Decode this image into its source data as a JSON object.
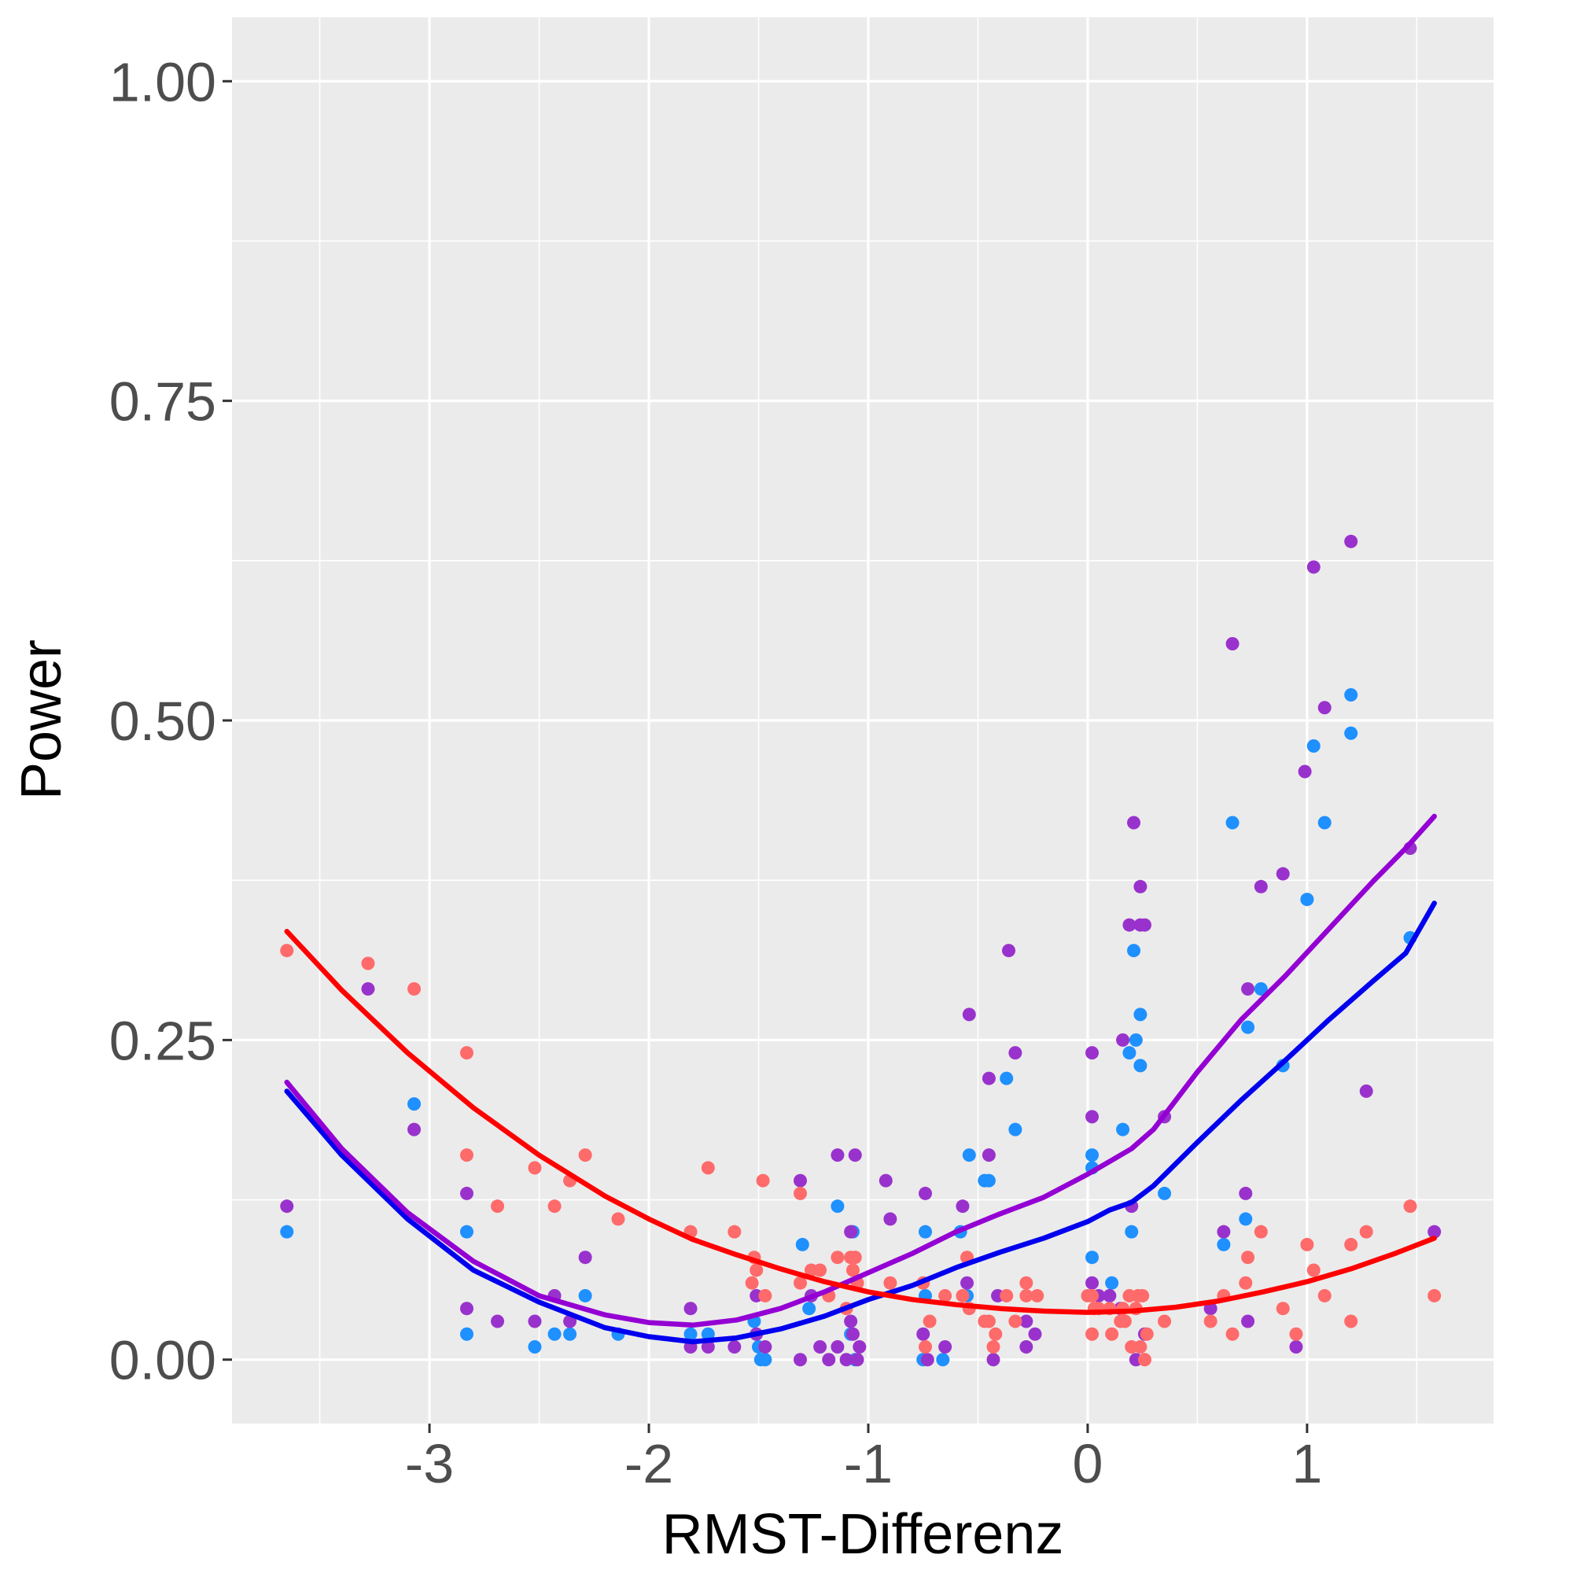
{
  "chart_data": {
    "type": "scatter",
    "xlabel": "RMST-Differenz",
    "ylabel": "Power",
    "xlim": [
      -3.9,
      1.85
    ],
    "ylim": [
      -0.05,
      1.05
    ],
    "x_ticks": [
      -3,
      -2,
      -1,
      0,
      1
    ],
    "x_tick_labels": [
      "-3",
      "-2",
      "-1",
      "0",
      "1"
    ],
    "y_ticks": [
      0,
      0.25,
      0.5,
      0.75,
      1
    ],
    "y_tick_labels": [
      "0.00",
      "0.25",
      "0.50",
      "0.75",
      "1.00"
    ],
    "grid": true,
    "legend": "none",
    "background_color": "#ebebeb",
    "series": [
      {
        "color": "#1e90ff",
        "points": [
          [
            -3.65,
            0.1
          ],
          [
            -3.07,
            0.2
          ],
          [
            -2.83,
            0.1
          ],
          [
            -2.83,
            0.02
          ],
          [
            -2.52,
            0.01
          ],
          [
            -2.43,
            0.02
          ],
          [
            -2.36,
            0.02
          ],
          [
            -2.29,
            0.05
          ],
          [
            -2.14,
            0.02
          ],
          [
            -1.81,
            0.02
          ],
          [
            -1.73,
            0.02
          ],
          [
            -1.52,
            0.03
          ],
          [
            -1.5,
            0.01
          ],
          [
            -1.49,
            0.0
          ],
          [
            -1.47,
            0.0
          ],
          [
            -1.3,
            0.09
          ],
          [
            -1.27,
            0.04
          ],
          [
            -1.14,
            0.12
          ],
          [
            -1.08,
            0.02
          ],
          [
            -1.07,
            0.1
          ],
          [
            -1.06,
            0.0
          ],
          [
            -0.75,
            0.0
          ],
          [
            -0.74,
            0.1
          ],
          [
            -0.74,
            0.05
          ],
          [
            -0.66,
            0.0
          ],
          [
            -0.58,
            0.1
          ],
          [
            -0.55,
            0.05
          ],
          [
            -0.54,
            0.16
          ],
          [
            -0.47,
            0.14
          ],
          [
            -0.45,
            0.14
          ],
          [
            -0.37,
            0.22
          ],
          [
            -0.33,
            0.18
          ],
          [
            0.02,
            0.16
          ],
          [
            0.02,
            0.15
          ],
          [
            0.02,
            0.08
          ],
          [
            0.11,
            0.06
          ],
          [
            0.16,
            0.18
          ],
          [
            0.19,
            0.24
          ],
          [
            0.2,
            0.1
          ],
          [
            0.21,
            0.32
          ],
          [
            0.22,
            0.25
          ],
          [
            0.24,
            0.27
          ],
          [
            0.24,
            0.23
          ],
          [
            0.35,
            0.13
          ],
          [
            0.62,
            0.09
          ],
          [
            0.66,
            0.42
          ],
          [
            0.72,
            0.11
          ],
          [
            0.73,
            0.26
          ],
          [
            0.79,
            0.29
          ],
          [
            0.89,
            0.23
          ],
          [
            1.0,
            0.36
          ],
          [
            1.03,
            0.48
          ],
          [
            1.08,
            0.42
          ],
          [
            1.2,
            0.52
          ],
          [
            1.2,
            0.49
          ],
          [
            1.47,
            0.33
          ]
        ]
      },
      {
        "color": "#9932cc",
        "points": [
          [
            -3.65,
            0.12
          ],
          [
            -3.28,
            0.29
          ],
          [
            -3.07,
            0.18
          ],
          [
            -2.83,
            0.13
          ],
          [
            -2.83,
            0.04
          ],
          [
            -2.69,
            0.03
          ],
          [
            -2.52,
            0.03
          ],
          [
            -2.43,
            0.05
          ],
          [
            -2.36,
            0.03
          ],
          [
            -2.29,
            0.08
          ],
          [
            -1.81,
            0.04
          ],
          [
            -1.81,
            0.01
          ],
          [
            -1.73,
            0.01
          ],
          [
            -1.61,
            0.01
          ],
          [
            -1.51,
            0.05
          ],
          [
            -1.51,
            0.02
          ],
          [
            -1.47,
            0.01
          ],
          [
            -1.31,
            0.14
          ],
          [
            -1.31,
            0.0
          ],
          [
            -1.26,
            0.05
          ],
          [
            -1.22,
            0.01
          ],
          [
            -1.18,
            0.0
          ],
          [
            -1.14,
            0.16
          ],
          [
            -1.14,
            0.01
          ],
          [
            -1.1,
            0.0
          ],
          [
            -1.08,
            0.1
          ],
          [
            -1.08,
            0.03
          ],
          [
            -1.07,
            0.02
          ],
          [
            -1.06,
            0.16
          ],
          [
            -1.05,
            0.0
          ],
          [
            -1.04,
            0.01
          ],
          [
            -0.92,
            0.14
          ],
          [
            -0.9,
            0.11
          ],
          [
            -0.75,
            0.02
          ],
          [
            -0.74,
            0.13
          ],
          [
            -0.73,
            0.0
          ],
          [
            -0.65,
            0.01
          ],
          [
            -0.57,
            0.12
          ],
          [
            -0.55,
            0.06
          ],
          [
            -0.54,
            0.27
          ],
          [
            -0.45,
            0.16
          ],
          [
            -0.45,
            0.22
          ],
          [
            -0.43,
            0.0
          ],
          [
            -0.41,
            0.05
          ],
          [
            -0.36,
            0.32
          ],
          [
            -0.33,
            0.24
          ],
          [
            -0.28,
            0.01
          ],
          [
            -0.28,
            0.03
          ],
          [
            -0.24,
            0.02
          ],
          [
            0.02,
            0.24
          ],
          [
            0.02,
            0.19
          ],
          [
            0.02,
            0.06
          ],
          [
            0.05,
            0.05
          ],
          [
            0.1,
            0.05
          ],
          [
            0.15,
            0.04
          ],
          [
            0.16,
            0.25
          ],
          [
            0.19,
            0.34
          ],
          [
            0.2,
            0.12
          ],
          [
            0.21,
            0.42
          ],
          [
            0.22,
            0.0
          ],
          [
            0.24,
            0.34
          ],
          [
            0.24,
            0.37
          ],
          [
            0.26,
            0.34
          ],
          [
            0.26,
            0.02
          ],
          [
            0.35,
            0.19
          ],
          [
            0.56,
            0.04
          ],
          [
            0.62,
            0.1
          ],
          [
            0.66,
            0.56
          ],
          [
            0.72,
            0.13
          ],
          [
            0.73,
            0.29
          ],
          [
            0.73,
            0.03
          ],
          [
            0.79,
            0.37
          ],
          [
            0.89,
            0.38
          ],
          [
            0.95,
            0.01
          ],
          [
            0.99,
            0.46
          ],
          [
            1.03,
            0.62
          ],
          [
            1.08,
            0.51
          ],
          [
            1.2,
            0.64
          ],
          [
            1.27,
            0.21
          ],
          [
            1.47,
            0.4
          ],
          [
            1.58,
            0.1
          ]
        ]
      },
      {
        "color": "#ff6a6a",
        "points": [
          [
            -3.65,
            0.32
          ],
          [
            -3.28,
            0.31
          ],
          [
            -3.07,
            0.29
          ],
          [
            -2.83,
            0.24
          ],
          [
            -2.83,
            0.16
          ],
          [
            -2.69,
            0.12
          ],
          [
            -2.52,
            0.15
          ],
          [
            -2.43,
            0.12
          ],
          [
            -2.36,
            0.14
          ],
          [
            -2.29,
            0.16
          ],
          [
            -2.14,
            0.11
          ],
          [
            -1.81,
            0.1
          ],
          [
            -1.73,
            0.15
          ],
          [
            -1.61,
            0.1
          ],
          [
            -1.53,
            0.06
          ],
          [
            -1.52,
            0.08
          ],
          [
            -1.51,
            0.07
          ],
          [
            -1.48,
            0.14
          ],
          [
            -1.47,
            0.05
          ],
          [
            -1.31,
            0.06
          ],
          [
            -1.31,
            0.13
          ],
          [
            -1.26,
            0.07
          ],
          [
            -1.22,
            0.07
          ],
          [
            -1.18,
            0.05
          ],
          [
            -1.14,
            0.08
          ],
          [
            -1.1,
            0.04
          ],
          [
            -1.08,
            0.08
          ],
          [
            -1.07,
            0.07
          ],
          [
            -1.06,
            0.08
          ],
          [
            -1.05,
            0.06
          ],
          [
            -0.9,
            0.06
          ],
          [
            -0.75,
            0.06
          ],
          [
            -0.74,
            0.01
          ],
          [
            -0.72,
            0.03
          ],
          [
            -0.65,
            0.05
          ],
          [
            -0.57,
            0.05
          ],
          [
            -0.55,
            0.08
          ],
          [
            -0.54,
            0.04
          ],
          [
            -0.47,
            0.03
          ],
          [
            -0.45,
            0.03
          ],
          [
            -0.43,
            0.01
          ],
          [
            -0.42,
            0.02
          ],
          [
            -0.37,
            0.05
          ],
          [
            -0.33,
            0.03
          ],
          [
            -0.28,
            0.06
          ],
          [
            -0.28,
            0.05
          ],
          [
            -0.23,
            0.05
          ],
          [
            0.0,
            0.05
          ],
          [
            0.02,
            0.05
          ],
          [
            0.02,
            0.02
          ],
          [
            0.03,
            0.04
          ],
          [
            0.05,
            0.04
          ],
          [
            0.1,
            0.04
          ],
          [
            0.11,
            0.02
          ],
          [
            0.15,
            0.03
          ],
          [
            0.16,
            0.04
          ],
          [
            0.17,
            0.03
          ],
          [
            0.19,
            0.05
          ],
          [
            0.2,
            0.01
          ],
          [
            0.22,
            0.04
          ],
          [
            0.23,
            0.05
          ],
          [
            0.24,
            0.01
          ],
          [
            0.25,
            0.05
          ],
          [
            0.26,
            0.0
          ],
          [
            0.27,
            0.02
          ],
          [
            0.35,
            0.03
          ],
          [
            0.56,
            0.03
          ],
          [
            0.62,
            0.05
          ],
          [
            0.66,
            0.02
          ],
          [
            0.72,
            0.06
          ],
          [
            0.73,
            0.08
          ],
          [
            0.79,
            0.1
          ],
          [
            0.89,
            0.04
          ],
          [
            0.95,
            0.02
          ],
          [
            1.0,
            0.09
          ],
          [
            1.03,
            0.07
          ],
          [
            1.08,
            0.05
          ],
          [
            1.2,
            0.09
          ],
          [
            1.2,
            0.03
          ],
          [
            1.27,
            0.1
          ],
          [
            1.47,
            0.12
          ],
          [
            1.58,
            0.05
          ]
        ]
      }
    ],
    "smooth_lines": [
      {
        "color": "#0000ee",
        "points": [
          [
            -3.65,
            0.21
          ],
          [
            -3.4,
            0.16
          ],
          [
            -3.1,
            0.11
          ],
          [
            -2.8,
            0.07
          ],
          [
            -2.5,
            0.045
          ],
          [
            -2.2,
            0.025
          ],
          [
            -2.0,
            0.018
          ],
          [
            -1.8,
            0.014
          ],
          [
            -1.6,
            0.017
          ],
          [
            -1.4,
            0.024
          ],
          [
            -1.2,
            0.034
          ],
          [
            -1.0,
            0.047
          ],
          [
            -0.8,
            0.058
          ],
          [
            -0.6,
            0.072
          ],
          [
            -0.4,
            0.084
          ],
          [
            -0.2,
            0.095
          ],
          [
            0.0,
            0.108
          ],
          [
            0.1,
            0.117
          ],
          [
            0.2,
            0.123
          ],
          [
            0.3,
            0.136
          ],
          [
            0.5,
            0.17
          ],
          [
            0.7,
            0.203
          ],
          [
            0.9,
            0.234
          ],
          [
            1.1,
            0.266
          ],
          [
            1.3,
            0.296
          ],
          [
            1.45,
            0.318
          ],
          [
            1.58,
            0.357
          ]
        ]
      },
      {
        "color": "#9400d3",
        "points": [
          [
            -3.65,
            0.217
          ],
          [
            -3.4,
            0.165
          ],
          [
            -3.1,
            0.115
          ],
          [
            -2.8,
            0.077
          ],
          [
            -2.5,
            0.05
          ],
          [
            -2.2,
            0.035
          ],
          [
            -2.0,
            0.029
          ],
          [
            -1.8,
            0.027
          ],
          [
            -1.6,
            0.031
          ],
          [
            -1.4,
            0.04
          ],
          [
            -1.2,
            0.053
          ],
          [
            -1.0,
            0.068
          ],
          [
            -0.8,
            0.083
          ],
          [
            -0.6,
            0.1
          ],
          [
            -0.4,
            0.114
          ],
          [
            -0.2,
            0.127
          ],
          [
            0.0,
            0.145
          ],
          [
            0.1,
            0.155
          ],
          [
            0.2,
            0.165
          ],
          [
            0.3,
            0.18
          ],
          [
            0.5,
            0.225
          ],
          [
            0.7,
            0.266
          ],
          [
            0.9,
            0.3
          ],
          [
            1.1,
            0.337
          ],
          [
            1.3,
            0.374
          ],
          [
            1.45,
            0.4
          ],
          [
            1.58,
            0.425
          ]
        ]
      },
      {
        "color": "#ff0000",
        "points": [
          [
            -3.65,
            0.335
          ],
          [
            -3.4,
            0.289
          ],
          [
            -3.1,
            0.24
          ],
          [
            -2.8,
            0.197
          ],
          [
            -2.5,
            0.16
          ],
          [
            -2.2,
            0.128
          ],
          [
            -2.0,
            0.11
          ],
          [
            -1.8,
            0.094
          ],
          [
            -1.6,
            0.082
          ],
          [
            -1.4,
            0.071
          ],
          [
            -1.2,
            0.061
          ],
          [
            -1.0,
            0.053
          ],
          [
            -0.8,
            0.047
          ],
          [
            -0.6,
            0.043
          ],
          [
            -0.4,
            0.04
          ],
          [
            -0.2,
            0.038
          ],
          [
            0.0,
            0.037
          ],
          [
            0.2,
            0.038
          ],
          [
            0.4,
            0.041
          ],
          [
            0.6,
            0.046
          ],
          [
            0.8,
            0.053
          ],
          [
            1.0,
            0.061
          ],
          [
            1.2,
            0.071
          ],
          [
            1.4,
            0.083
          ],
          [
            1.58,
            0.095
          ]
        ]
      }
    ]
  }
}
